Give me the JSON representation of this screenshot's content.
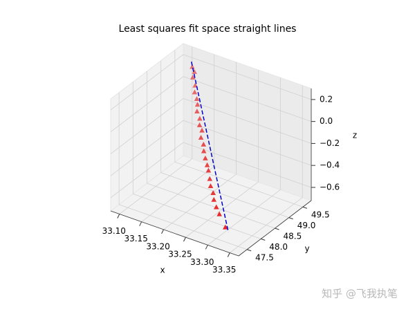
{
  "chart_data": {
    "type": "scatter3d",
    "title": "Least squares fit space straight lines",
    "xlabel": "x",
    "ylabel": "y",
    "zlabel": "z",
    "xlim": [
      33.08,
      33.37
    ],
    "ylim": [
      47.2,
      49.8
    ],
    "zlim": [
      -0.72,
      0.3
    ],
    "xticks": [
      {
        "value": 33.1,
        "label": "33.10"
      },
      33.15,
      {
        "value": 33.2,
        "label": "33.20"
      },
      33.25,
      {
        "value": 33.3,
        "label": "33.30"
      },
      33.35
    ],
    "yticks": [
      47.5,
      {
        "value": 48,
        "label": "48.0"
      },
      48.5,
      {
        "value": 49,
        "label": "49.0"
      },
      49.5
    ],
    "zticks": [
      {
        "value": -0.6,
        "label": "−0.6"
      },
      {
        "value": -0.4,
        "label": "−0.4"
      },
      {
        "value": -0.2,
        "label": "−0.2"
      },
      {
        "value": 0,
        "label": "0.0"
      },
      0.2
    ],
    "grid": true,
    "series": [
      {
        "kind": "points",
        "color": "#e31a1c",
        "x": [
          33.13,
          33.137,
          33.139,
          33.148,
          33.152,
          33.16,
          33.166,
          33.17,
          33.18,
          33.184,
          33.192,
          33.196,
          33.205,
          33.21,
          33.218,
          33.226,
          33.232,
          33.24,
          33.247,
          33.256,
          33.262,
          33.272,
          33.282,
          33.3
        ],
        "y": [
          49.33,
          49.3,
          49.21,
          49.15,
          49.07,
          49.02,
          48.95,
          48.87,
          48.81,
          48.74,
          48.7,
          48.6,
          48.55,
          48.48,
          48.41,
          48.35,
          48.3,
          48.22,
          48.14,
          48.09,
          48.02,
          47.95,
          47.9,
          47.83
        ],
        "z": [
          0.25,
          0.22,
          0.19,
          0.14,
          0.1,
          0.06,
          0.03,
          -0.01,
          -0.05,
          -0.09,
          -0.12,
          -0.16,
          -0.2,
          -0.24,
          -0.28,
          -0.32,
          -0.35,
          -0.4,
          -0.44,
          -0.48,
          -0.52,
          -0.56,
          -0.6,
          -0.68
        ]
      },
      {
        "kind": "line",
        "style": "dashed",
        "color": "#0000cc",
        "x": [
          33.125,
          33.31
        ],
        "y": [
          49.38,
          47.78
        ],
        "z": [
          0.28,
          -0.7
        ]
      }
    ]
  },
  "watermark": "知乎 @飞我执笔"
}
